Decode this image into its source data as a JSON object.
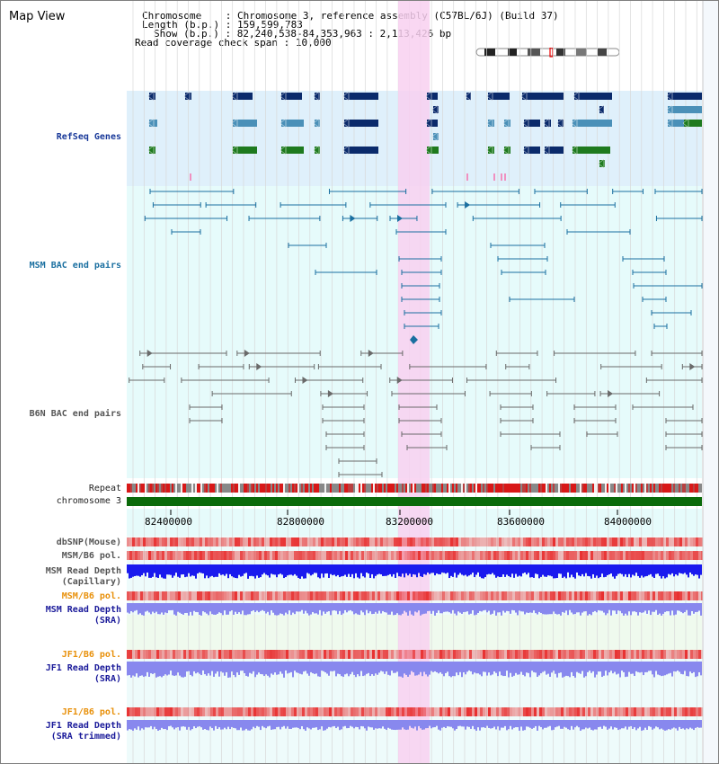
{
  "view_title": "Map View",
  "header": {
    "chromosome_label": "Chromosome",
    "chromosome_value": "Chromosome 3, reference assembly (C57BL/6J) (Build 37)",
    "length_label": "Length (b.p.)",
    "length_value": "159,599,783",
    "show_label": "Show (b.p.)",
    "show_value": "82,240,538-84,353,963 : 2,113,426 bp",
    "span_label": "Read coverage check span",
    "span_value": "10,000"
  },
  "tracks": {
    "refseq": "RefSeq Genes",
    "msm_bac": "MSM BAC end pairs",
    "b6n_bac": "B6N BAC end pairs",
    "repeat": "Repeat",
    "chromosome": "chromosome 3",
    "dbsnp": "dbSNP(Mouse)",
    "msm_b6_pol_1": "MSM/B6 pol.",
    "msm_depth_cap_1": "MSM Read Depth",
    "msm_depth_cap_2": "(Capillary)",
    "msm_b6_pol_2": "MSM/B6 pol.",
    "msm_depth_sra_1": "MSM Read Depth",
    "msm_depth_sra_2": "(SRA)",
    "jf1_b6_pol_1": "JF1/B6 pol.",
    "jf1_depth_sra_1": "JF1 Read Depth",
    "jf1_depth_sra_2": "(SRA)",
    "jf1_b6_pol_2": "JF1/B6 pol.",
    "jf1_depth_trim_1": "JF1 Read Depth",
    "jf1_depth_trim_2": "(SRA trimmed)"
  },
  "ruler": {
    "ticks": [
      "82400000",
      "82800000",
      "83200000",
      "83600000",
      "84000000"
    ]
  },
  "colors": {
    "gene_dark": "#0a2a6b",
    "gene_blue": "#4a90b8",
    "gene_green": "#1e7a1e",
    "msm_bac": "#1a6fa0",
    "b6n_bac": "#6a6a6a",
    "highlight": "#f8d0f0",
    "depth_dark": "#1a1aee",
    "depth_light": "#8888ee"
  }
}
